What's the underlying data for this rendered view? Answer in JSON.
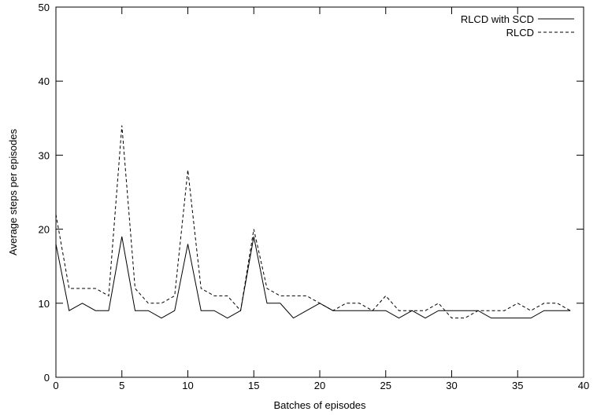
{
  "chart_data": {
    "type": "line",
    "title": "",
    "xlabel": "Batches of episodes",
    "ylabel": "Average steps per episodes",
    "xlim": [
      0,
      40
    ],
    "ylim": [
      0,
      50
    ],
    "xticks": [
      "0",
      "5",
      "10",
      "15",
      "20",
      "25",
      "30",
      "35",
      "40"
    ],
    "yticks": [
      "0",
      "10",
      "20",
      "30",
      "40",
      "50"
    ],
    "grid": false,
    "legend_position": "top-right",
    "x": [
      0,
      1,
      2,
      3,
      4,
      5,
      6,
      7,
      8,
      9,
      10,
      11,
      12,
      13,
      14,
      15,
      16,
      17,
      18,
      19,
      20,
      21,
      22,
      23,
      24,
      25,
      26,
      27,
      28,
      29,
      30,
      31,
      32,
      33,
      34,
      35,
      36,
      37,
      38,
      39
    ],
    "series": [
      {
        "name": "RLCD with SCD",
        "style": "solid",
        "values": [
          18,
          9,
          10,
          9,
          9,
          19,
          9,
          9,
          8,
          9,
          18,
          9,
          9,
          8,
          9,
          19,
          10,
          10,
          8,
          9,
          10,
          9,
          9,
          9,
          9,
          9,
          8,
          9,
          8,
          9,
          9,
          9,
          9,
          8,
          8,
          8,
          8,
          9,
          9,
          9
        ]
      },
      {
        "name": "RLCD",
        "style": "dashed",
        "values": [
          22,
          12,
          12,
          12,
          11,
          34,
          12,
          10,
          10,
          11,
          28,
          12,
          11,
          11,
          9,
          20,
          12,
          11,
          11,
          11,
          10,
          9,
          10,
          10,
          9,
          11,
          9,
          9,
          9,
          10,
          8,
          8,
          9,
          9,
          9,
          10,
          9,
          10,
          10,
          9
        ]
      }
    ]
  }
}
